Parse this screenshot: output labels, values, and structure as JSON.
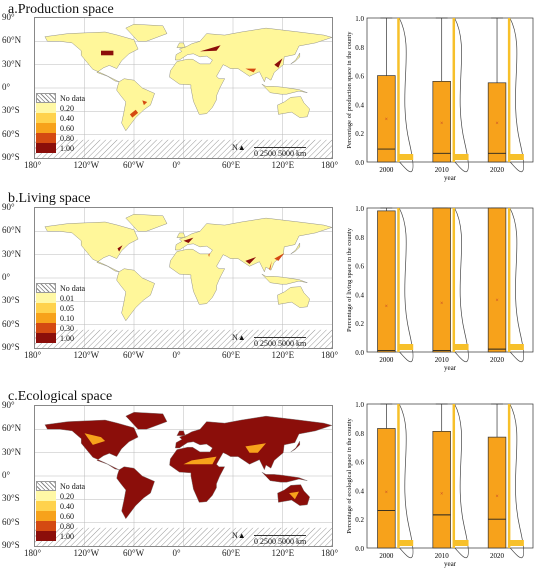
{
  "panels": [
    {
      "title": "a.Production space",
      "legend": [
        "No data",
        "0.20",
        "0.40",
        "0.60",
        "0.80",
        "1.00"
      ],
      "colors": [
        "#ffffff",
        "#fff8a6",
        "#ffd24d",
        "#f7a21b",
        "#d44a12",
        "#8b0e0a"
      ],
      "land_color": "#fff79a",
      "ylabel": "Percentage of production space in the county",
      "boxes": [
        {
          "year": "2000",
          "q1": 0.0,
          "median": 0.09,
          "q3": 0.6,
          "whisker_high": 1.0,
          "mean": 0.3
        },
        {
          "year": "2010",
          "q1": 0.0,
          "median": 0.06,
          "q3": 0.56,
          "whisker_high": 1.0,
          "mean": 0.27
        },
        {
          "year": "2020",
          "q1": 0.0,
          "median": 0.06,
          "q3": 0.55,
          "whisker_high": 1.0,
          "mean": 0.27
        }
      ],
      "yticks": [
        "0.0",
        "0.2",
        "0.4",
        "0.6",
        "0.8",
        "1.0"
      ]
    },
    {
      "title": "b.Living space",
      "legend": [
        "No data",
        "0.01",
        "0.05",
        "0.10",
        "0.30",
        "1.00"
      ],
      "colors": [
        "#ffffff",
        "#fff8a6",
        "#ffd24d",
        "#f7a21b",
        "#d44a12",
        "#8b0e0a"
      ],
      "land_color": "#fff79a",
      "ylabel": "Percentage of living space in the county",
      "boxes": [
        {
          "year": "2000",
          "q1": 0.0,
          "median": 0.01,
          "q3": 0.98,
          "whisker_high": 1.0,
          "mean": 0.32
        },
        {
          "year": "2010",
          "q1": 0.0,
          "median": 0.01,
          "q3": 1.0,
          "whisker_high": 1.0,
          "mean": 0.34
        },
        {
          "year": "2020",
          "q1": 0.0,
          "median": 0.02,
          "q3": 1.0,
          "whisker_high": 1.0,
          "mean": 0.36
        }
      ],
      "yticks": [
        "0.0",
        "0.2",
        "0.4",
        "0.6",
        "0.8",
        "1.0"
      ]
    },
    {
      "title": "c.Ecological space",
      "legend": [
        "No data",
        "0.20",
        "0.40",
        "0.60",
        "0.80",
        "1.00"
      ],
      "colors": [
        "#ffffff",
        "#fff8a6",
        "#ffd24d",
        "#f7a21b",
        "#d44a12",
        "#8b0e0a"
      ],
      "land_color": "#8b0e0a",
      "ylabel": "Percentage of ecological space in the county",
      "boxes": [
        {
          "year": "2000",
          "q1": 0.0,
          "median": 0.26,
          "q3": 0.83,
          "whisker_high": 1.0,
          "mean": 0.39
        },
        {
          "year": "2010",
          "q1": 0.0,
          "median": 0.23,
          "q3": 0.81,
          "whisker_high": 1.0,
          "mean": 0.38
        },
        {
          "year": "2020",
          "q1": 0.0,
          "median": 0.2,
          "q3": 0.77,
          "whisker_high": 1.0,
          "mean": 0.36
        }
      ],
      "yticks": [
        "0.0",
        "0.2",
        "0.4",
        "0.6",
        "0.8",
        "1.0"
      ]
    }
  ],
  "lat_ticks": [
    "90°",
    "60°N",
    "30°N",
    "0°",
    "30°S",
    "60°S",
    "90°S"
  ],
  "lon_ticks": [
    "180°",
    "120°W",
    "60°W",
    "0°",
    "60°E",
    "120°E",
    "180°"
  ],
  "scale_labels": [
    "0",
    "2500",
    "5000 km"
  ],
  "north": "N",
  "xlabel": "year",
  "box_color": "#f7a21b",
  "density_color": "#f7c02a"
}
